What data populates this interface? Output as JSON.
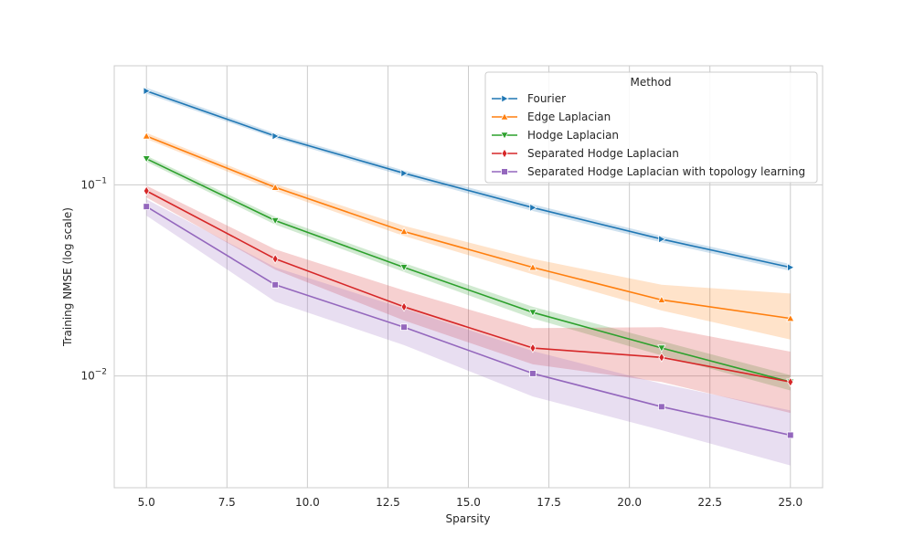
{
  "chart_data": {
    "type": "line",
    "xlabel": "Sparsity",
    "ylabel": "Training NMSE (log scale)",
    "xlim": [
      4.0,
      26.0
    ],
    "ylim": [
      0.0026,
      0.42
    ],
    "yscale": "log",
    "grid": true,
    "x_ticks": [
      5.0,
      7.5,
      10.0,
      12.5,
      15.0,
      17.5,
      20.0,
      22.5,
      25.0
    ],
    "x_tick_labels": [
      "5.0",
      "7.5",
      "10.0",
      "12.5",
      "15.0",
      "17.5",
      "20.0",
      "22.5",
      "25.0"
    ],
    "y_ticks": [
      0.1,
      0.01
    ],
    "y_tick_labels": [
      {
        "base": "10",
        "exp": "−1"
      },
      {
        "base": "10",
        "exp": "−2"
      }
    ],
    "legend": {
      "title": "Method",
      "position": "top-right"
    },
    "x": [
      5,
      9,
      13,
      17,
      21,
      25
    ],
    "series": [
      {
        "name": "Fourier",
        "color": "#1f77b4",
        "marker": "triangle-right",
        "values": [
          0.31,
          0.18,
          0.115,
          0.076,
          0.052,
          0.037
        ],
        "lower": [
          0.3,
          0.175,
          0.111,
          0.073,
          0.05,
          0.0355
        ],
        "upper": [
          0.322,
          0.186,
          0.119,
          0.079,
          0.054,
          0.0385
        ]
      },
      {
        "name": "Edge Laplacian",
        "color": "#ff7f0e",
        "marker": "triangle-up",
        "values": [
          0.18,
          0.097,
          0.057,
          0.037,
          0.025,
          0.02
        ],
        "lower": [
          0.174,
          0.093,
          0.054,
          0.034,
          0.022,
          0.0155
        ],
        "upper": [
          0.187,
          0.101,
          0.061,
          0.041,
          0.03,
          0.027
        ]
      },
      {
        "name": "Hodge Laplacian",
        "color": "#2ca02c",
        "marker": "triangle-down",
        "values": [
          0.137,
          0.065,
          0.037,
          0.0215,
          0.014,
          0.0093
        ],
        "lower": [
          0.132,
          0.062,
          0.035,
          0.02,
          0.0128,
          0.0084
        ],
        "upper": [
          0.142,
          0.068,
          0.039,
          0.023,
          0.0152,
          0.0101
        ]
      },
      {
        "name": "Separated Hodge Laplacian",
        "color": "#d62728",
        "marker": "diamond",
        "values": [
          0.093,
          0.041,
          0.023,
          0.014,
          0.0125,
          0.0093
        ],
        "lower": [
          0.086,
          0.036,
          0.0195,
          0.0115,
          0.0093,
          0.0064
        ],
        "upper": [
          0.099,
          0.046,
          0.028,
          0.0178,
          0.018,
          0.0134
        ]
      },
      {
        "name": "Separated Hodge Laplacian with topology learning",
        "color": "#9467bd",
        "marker": "square",
        "values": [
          0.077,
          0.03,
          0.018,
          0.0103,
          0.0069,
          0.0049
        ],
        "lower": [
          0.069,
          0.0245,
          0.0145,
          0.0078,
          0.0052,
          0.0034
        ],
        "upper": [
          0.084,
          0.037,
          0.0225,
          0.0135,
          0.0091,
          0.0066
        ]
      }
    ]
  }
}
